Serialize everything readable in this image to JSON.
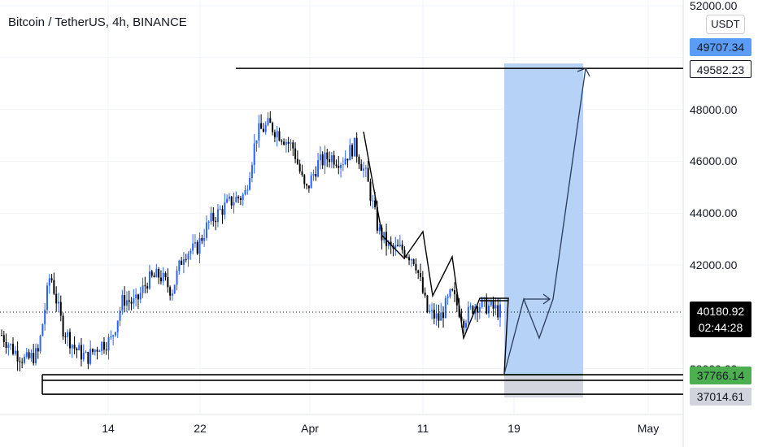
{
  "header": {
    "title": "Bitcoin / TetherUS, 4h, BINANCE",
    "currency": "USDT"
  },
  "price_axis": {
    "ticks": [
      "52000.00",
      "48000.00",
      "46000.00",
      "44000.00",
      "42000.00",
      "38000.00"
    ],
    "tags": {
      "target_blue": "49707.34",
      "line_level": "49582.23",
      "current_price": "40180.92",
      "countdown": "02:44:28",
      "support_green": "37766.14",
      "support_gray": "37014.61"
    }
  },
  "time_axis": {
    "labels": [
      "14",
      "22",
      "Apr",
      "11",
      "19",
      "May"
    ]
  },
  "colors": {
    "up_candle": "#2962ff",
    "down_candle": "#000000",
    "target_zone": "#b2d0f7",
    "stop_zone": "#d1d4dc",
    "green_tag": "#4caf50",
    "blue_tag": "#5b9cf6"
  },
  "chart_data": {
    "type": "candlestick",
    "title": "Bitcoin / TetherUS, 4h, BINANCE",
    "xlabel": "",
    "ylabel": "",
    "x_ticks": [
      "14",
      "22",
      "Apr",
      "11",
      "19",
      "May"
    ],
    "ylim": [
      36800,
      52200
    ],
    "close_series_approx": [
      {
        "x": "Mar 7",
        "y": 39300
      },
      {
        "x": "Mar 8",
        "y": 38700
      },
      {
        "x": "Mar 9",
        "y": 38300
      },
      {
        "x": "Mar 10",
        "y": 38600
      },
      {
        "x": "Mar 11",
        "y": 41700
      },
      {
        "x": "Mar 12",
        "y": 39600
      },
      {
        "x": "Mar 13",
        "y": 38800
      },
      {
        "x": "Mar 14",
        "y": 38400
      },
      {
        "x": "Mar 15",
        "y": 38900
      },
      {
        "x": "Mar 16",
        "y": 39100
      },
      {
        "x": "Mar 17",
        "y": 40700
      },
      {
        "x": "Mar 18",
        "y": 40500
      },
      {
        "x": "Mar 19",
        "y": 41400
      },
      {
        "x": "Mar 20",
        "y": 41600
      },
      {
        "x": "Mar 21",
        "y": 41000
      },
      {
        "x": "Mar 22",
        "y": 42500
      },
      {
        "x": "Mar 23",
        "y": 42600
      },
      {
        "x": "Mar 24",
        "y": 43600
      },
      {
        "x": "Mar 25",
        "y": 44100
      },
      {
        "x": "Mar 26",
        "y": 44500
      },
      {
        "x": "Mar 27",
        "y": 44700
      },
      {
        "x": "Mar 28",
        "y": 47100
      },
      {
        "x": "Mar 29",
        "y": 47400
      },
      {
        "x": "Mar 30",
        "y": 47000
      },
      {
        "x": "Mar 31",
        "y": 46500
      },
      {
        "x": "Apr 1",
        "y": 44800
      },
      {
        "x": "Apr 2",
        "y": 45900
      },
      {
        "x": "Apr 3",
        "y": 46200
      },
      {
        "x": "Apr 4",
        "y": 46000
      },
      {
        "x": "Apr 5",
        "y": 46600
      },
      {
        "x": "Apr 6",
        "y": 45400
      },
      {
        "x": "Apr 7",
        "y": 43300
      },
      {
        "x": "Apr 8",
        "y": 42600
      },
      {
        "x": "Apr 9",
        "y": 42600
      },
      {
        "x": "Apr 10",
        "y": 42200
      },
      {
        "x": "Apr 11",
        "y": 40200
      },
      {
        "x": "Apr 12",
        "y": 39900
      },
      {
        "x": "Apr 13",
        "y": 40900
      },
      {
        "x": "Apr 14",
        "y": 39900
      },
      {
        "x": "Apr 15",
        "y": 40500
      },
      {
        "x": "Apr 16",
        "y": 40400
      },
      {
        "x": "Apr 17",
        "y": 40200
      }
    ],
    "annotations": {
      "target_level": 49582.23,
      "position_target": 49707.34,
      "entry_level": 37766.14,
      "stop_level": 37014.61,
      "current_price": 40180.92
    }
  }
}
